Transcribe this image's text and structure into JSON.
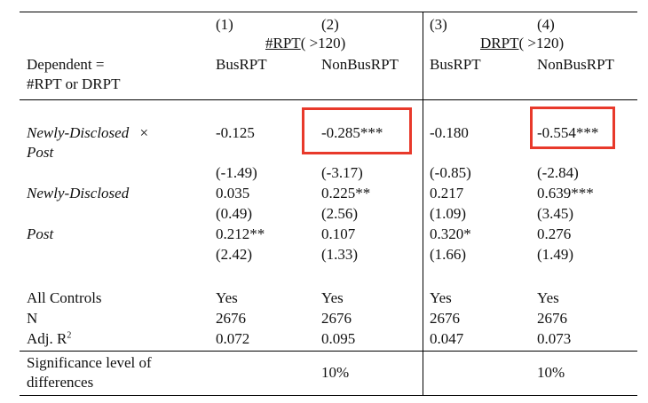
{
  "table": {
    "col_numbers": [
      "(1)",
      "(2)",
      "(3)",
      "(4)"
    ],
    "group_headers": [
      {
        "underlined": "#RPT",
        "rest": "( >120)"
      },
      {
        "underlined": "DRPT",
        "rest": "( >120)"
      }
    ],
    "dependent_label_line1": "Dependent =",
    "dependent_label_line2": "#RPT or DRPT",
    "col_labels": [
      "BusRPT",
      "NonBusRPT",
      "BusRPT",
      "NonBusRPT"
    ],
    "rows": [
      {
        "label_line1": "Newly-Disclosed",
        "label_times": "×",
        "label_line2": "Post",
        "coefs": [
          "-0.125",
          "-0.285***",
          "-0.180",
          "-0.554***"
        ],
        "tstats": [
          "(-1.49)",
          "(-3.17)",
          "(-0.85)",
          "(-2.84)"
        ]
      },
      {
        "label_line1": "Newly-Disclosed",
        "coefs": [
          "0.035",
          "0.225**",
          "0.217",
          "0.639***"
        ],
        "tstats": [
          "(0.49)",
          "(2.56)",
          "(1.09)",
          "(3.45)"
        ]
      },
      {
        "label_line1": "Post",
        "coefs": [
          "0.212**",
          "0.107",
          "0.320*",
          "0.276"
        ],
        "tstats": [
          "(2.42)",
          "(1.33)",
          "(1.66)",
          "(1.49)"
        ]
      }
    ],
    "stats": [
      {
        "label": "All Controls",
        "values": [
          "Yes",
          "Yes",
          "Yes",
          "Yes"
        ]
      },
      {
        "label": "N",
        "values": [
          "2676",
          "2676",
          "2676",
          "2676"
        ]
      },
      {
        "label_base": "Adj. R",
        "label_sup": "2",
        "values": [
          "0.072",
          "0.095",
          "0.047",
          "0.073"
        ]
      }
    ],
    "significance": {
      "label_line1": "Significance level of",
      "label_line2": "differences",
      "values": [
        "10%",
        "10%"
      ]
    },
    "highlight_color": "#e8392b"
  }
}
